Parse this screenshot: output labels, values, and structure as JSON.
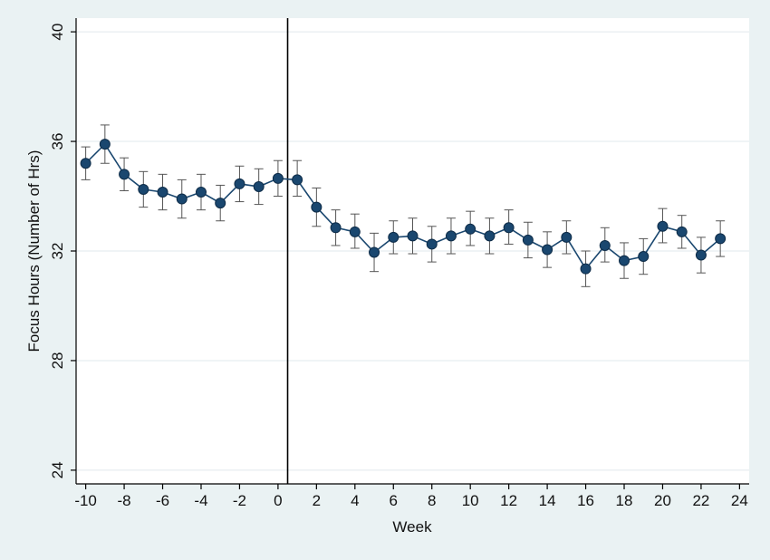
{
  "chart_data": {
    "type": "line",
    "title": "",
    "xlabel": "Week",
    "ylabel": "Focus Hours (Number of Hrs)",
    "xlim": [
      -10.5,
      24.5
    ],
    "ylim": [
      23.5,
      40.5
    ],
    "xticks": [
      -10,
      -8,
      -6,
      -4,
      -2,
      0,
      2,
      4,
      6,
      8,
      10,
      12,
      14,
      16,
      18,
      20,
      22,
      24
    ],
    "yticks": [
      24,
      28,
      32,
      36,
      40
    ],
    "grid": "horizontal",
    "reference_line_x": 0.5,
    "colors": {
      "background": "#eaf2f3",
      "plot_area": "#ffffff",
      "series": "#1a476f",
      "marker_edge": "#0d2b47",
      "grid": "#e0e8ee",
      "error_bar": "#555555",
      "reference_line": "#000000"
    },
    "series": [
      {
        "x": [
          -10,
          -9,
          -8,
          -7,
          -6,
          -5,
          -4,
          -3,
          -2,
          -1,
          0,
          1,
          2,
          3,
          4,
          5,
          6,
          7,
          8,
          9,
          10,
          11,
          12,
          13,
          14,
          15,
          16,
          17,
          18,
          19,
          20,
          21,
          22,
          23
        ],
        "values": [
          35.2,
          35.9,
          34.8,
          34.25,
          34.15,
          33.9,
          34.15,
          33.75,
          34.45,
          34.35,
          34.65,
          34.6,
          33.6,
          32.85,
          32.7,
          31.95,
          32.5,
          32.55,
          32.25,
          32.55,
          32.8,
          32.55,
          32.85,
          32.4,
          32.05,
          32.5,
          31.35,
          32.2,
          31.65,
          31.8,
          32.9,
          32.7,
          31.85,
          32.45
        ],
        "error_low": [
          34.6,
          35.2,
          34.2,
          33.6,
          33.5,
          33.2,
          33.5,
          33.1,
          33.8,
          33.7,
          34.0,
          34.0,
          32.9,
          32.2,
          32.1,
          31.25,
          31.9,
          31.9,
          31.6,
          31.9,
          32.2,
          31.9,
          32.25,
          31.75,
          31.4,
          31.9,
          30.7,
          31.6,
          31.0,
          31.15,
          32.3,
          32.1,
          31.2,
          31.8
        ],
        "error_high": [
          35.8,
          36.6,
          35.4,
          34.9,
          34.8,
          34.6,
          34.8,
          34.4,
          35.1,
          35.0,
          35.3,
          35.3,
          34.3,
          33.5,
          33.35,
          32.65,
          33.1,
          33.2,
          32.9,
          33.2,
          33.45,
          33.2,
          33.5,
          33.05,
          32.7,
          33.1,
          32.0,
          32.85,
          32.3,
          32.45,
          33.55,
          33.3,
          32.5,
          33.1
        ]
      }
    ]
  }
}
